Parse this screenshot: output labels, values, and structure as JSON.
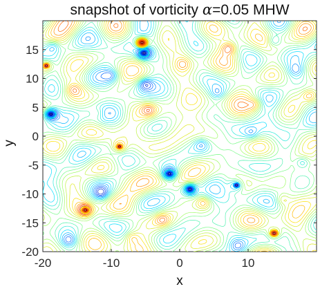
{
  "chart_data": {
    "type": "contour",
    "title_prefix": "snapshot of vorticity ",
    "title_symbol": "α",
    "title_suffix": "=0.05  MHW",
    "xlabel": "x",
    "ylabel": "y",
    "xlim": [
      -20,
      20
    ],
    "ylim": [
      -20,
      20
    ],
    "xticks": [
      -20,
      -10,
      0,
      10
    ],
    "yticks": [
      -20,
      -15,
      -10,
      -5,
      0,
      5,
      10,
      15
    ],
    "xtick_labels": [
      "-20",
      "-10",
      "0",
      "10"
    ],
    "ytick_labels": [
      "-20",
      "-15",
      "-10",
      "-5",
      "0",
      "5",
      "10",
      "15"
    ],
    "colormap": [
      "#00008f",
      "#0050ff",
      "#00dfff",
      "#8fff70",
      "#ffdf00",
      "#ff5000",
      "#800000"
    ],
    "vortices": [
      {
        "x": -5.5,
        "y": 16.2,
        "amp": 1.0
      },
      {
        "x": -5.2,
        "y": 14.4,
        "amp": -0.8
      },
      {
        "x": -18.8,
        "y": 3.8,
        "amp": -0.9
      },
      {
        "x": -1.5,
        "y": -6.5,
        "amp": -0.85
      },
      {
        "x": 1.5,
        "y": -9.2,
        "amp": -0.85
      },
      {
        "x": -13.8,
        "y": -12.8,
        "amp": 0.7
      },
      {
        "x": 13.8,
        "y": -16.8,
        "amp": 0.6
      },
      {
        "x": -19.5,
        "y": 12.2,
        "amp": 0.55
      },
      {
        "x": -8.8,
        "y": -1.8,
        "amp": 0.5
      },
      {
        "x": 8.3,
        "y": -8.5,
        "amp": -0.5
      },
      {
        "x": 7.2,
        "y": 15.2,
        "amp": 0.45
      },
      {
        "x": -5.0,
        "y": 9.0,
        "amp": -0.45
      },
      {
        "x": -11.5,
        "y": -9.8,
        "amp": -0.4
      },
      {
        "x": 3.5,
        "y": -11.5,
        "amp": 0.4
      },
      {
        "x": 13.8,
        "y": 16.5,
        "amp": -0.4
      },
      {
        "x": -18.5,
        "y": 15.5,
        "amp": -0.35
      },
      {
        "x": -4.5,
        "y": 4.5,
        "amp": 0.35
      },
      {
        "x": 19.0,
        "y": 7.0,
        "amp": 0.35
      },
      {
        "x": -16.2,
        "y": -18.0,
        "amp": -0.35
      },
      {
        "x": 3.2,
        "y": -1.5,
        "amp": -0.3
      },
      {
        "x": 11.0,
        "y": 5.5,
        "amp": 0.3
      },
      {
        "x": 18.0,
        "y": -4.5,
        "amp": -0.35
      },
      {
        "x": 8.5,
        "y": -19.0,
        "amp": -0.3
      },
      {
        "x": -2.5,
        "y": -14.5,
        "amp": 0.3
      },
      {
        "x": -10.0,
        "y": 10.5,
        "amp": -0.3
      },
      {
        "x": 15.0,
        "y": -11.0,
        "amp": 0.3
      },
      {
        "x": -15.5,
        "y": 8.0,
        "amp": 0.3
      },
      {
        "x": 5.5,
        "y": 7.5,
        "amp": -0.25
      },
      {
        "x": -12.0,
        "y": 4.0,
        "amp": 0.25
      },
      {
        "x": 10.5,
        "y": 0.5,
        "amp": -0.25
      },
      {
        "x": 0.5,
        "y": 12.5,
        "amp": 0.25
      },
      {
        "x": -7.0,
        "y": -17.5,
        "amp": 0.25
      },
      {
        "x": 17.0,
        "y": 11.5,
        "amp": -0.25
      }
    ]
  }
}
